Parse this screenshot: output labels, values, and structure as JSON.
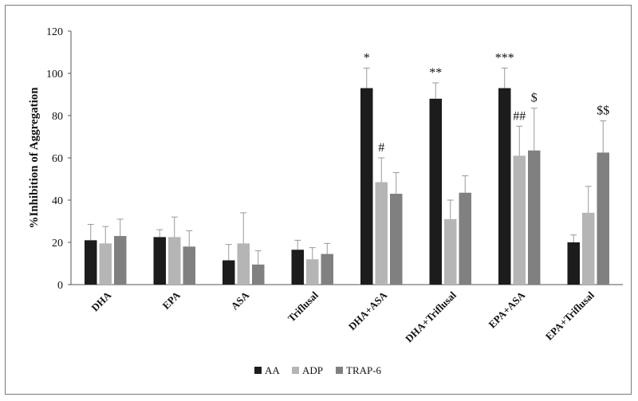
{
  "chart_data": {
    "type": "bar",
    "title": "",
    "xlabel": "",
    "ylabel": "%Inhibition of Aggregation",
    "ylim": [
      0,
      120
    ],
    "yticks": [
      0,
      20,
      40,
      60,
      80,
      100,
      120
    ],
    "grid": false,
    "legend_position": "bottom",
    "categories": [
      "DHA",
      "EPA",
      "ASA",
      "Triflusal",
      "DHA+ASA",
      "DHA+Triflusal",
      "EPA+ASA",
      "EPA+Triflusal"
    ],
    "series": [
      {
        "name": "AA",
        "color": "#1c1c1c",
        "values": [
          21,
          22.5,
          11.5,
          16.5,
          93,
          88,
          93,
          20
        ],
        "errors": [
          7.5,
          3.5,
          7.5,
          4.5,
          9.5,
          7.5,
          9.5,
          3.5
        ]
      },
      {
        "name": "ADP",
        "color": "#b5b5b5",
        "values": [
          19.5,
          22.5,
          19.5,
          12,
          48.5,
          31,
          61,
          34
        ],
        "errors": [
          8,
          9.5,
          14.5,
          5.5,
          11.5,
          9,
          14,
          12.5
        ]
      },
      {
        "name": "TRAP-6",
        "color": "#808080",
        "values": [
          23,
          18,
          9.5,
          14.5,
          43,
          43.5,
          63.5,
          62.5
        ],
        "errors": [
          8,
          7.5,
          6.5,
          5,
          10,
          8,
          20,
          15
        ]
      }
    ],
    "annotations": [
      {
        "text": "*",
        "category": "DHA+ASA",
        "series": "AA"
      },
      {
        "text": "#",
        "category": "DHA+ASA",
        "series": "ADP"
      },
      {
        "text": "**",
        "category": "DHA+Triflusal",
        "series": "AA"
      },
      {
        "text": "***",
        "category": "EPA+ASA",
        "series": "AA"
      },
      {
        "text": "##",
        "category": "EPA+ASA",
        "series": "ADP"
      },
      {
        "text": "$",
        "category": "EPA+ASA",
        "series": "TRAP-6"
      },
      {
        "text": "$$",
        "category": "EPA+Triflusal",
        "series": "TRAP-6"
      }
    ]
  }
}
